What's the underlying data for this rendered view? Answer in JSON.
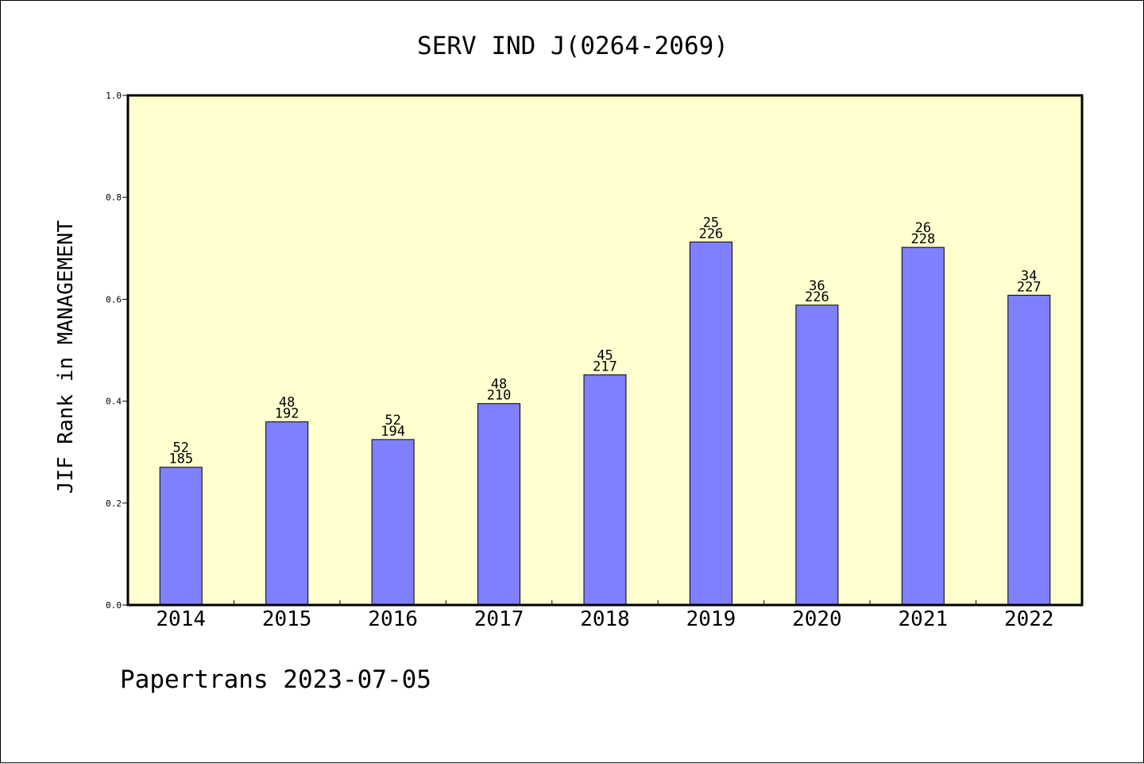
{
  "chart_data": {
    "type": "bar",
    "title": "SERV IND J(0264-2069)",
    "xlabel": "",
    "ylabel": "JIF Rank in MANAGEMENT",
    "ylim": [
      0,
      1
    ],
    "yticks": [
      "0.0",
      "0.2",
      "0.4",
      "0.6",
      "0.8",
      "1.0"
    ],
    "categories": [
      "2014",
      "2015",
      "2016",
      "2017",
      "2018",
      "2019",
      "2020",
      "2021",
      "2022"
    ],
    "values": [
      0.2703,
      0.3594,
      0.3247,
      0.3952,
      0.4516,
      0.7124,
      0.5885,
      0.7018,
      0.6079
    ],
    "rank": [
      "52",
      "48",
      "52",
      "48",
      "45",
      "25",
      "36",
      "26",
      "34"
    ],
    "total": [
      "185",
      "192",
      "194",
      "210",
      "217",
      "226",
      "226",
      "228",
      "227"
    ],
    "grid": false,
    "legend": "none",
    "colors": {
      "plot_background": "#ffffd0",
      "bar_fill": "#8080ff",
      "bar_stroke": "#000000"
    }
  },
  "footer": "Papertrans 2023-07-05"
}
